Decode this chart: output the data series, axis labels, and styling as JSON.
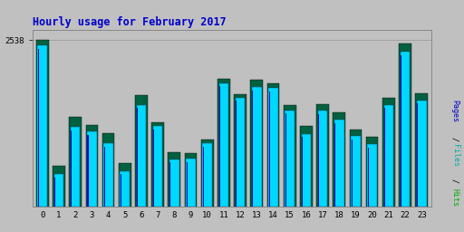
{
  "title": "Hourly usage for February 2017",
  "ytick_label": "2538",
  "ymax": 2538,
  "hours": [
    0,
    1,
    2,
    3,
    4,
    5,
    6,
    7,
    8,
    9,
    10,
    11,
    12,
    13,
    14,
    15,
    16,
    17,
    18,
    19,
    20,
    21,
    22,
    23
  ],
  "background_color": "#c0c0c0",
  "bar_color_green": "#006040",
  "bar_color_cyan": "#00d8ff",
  "bar_color_blue": "#0000cc",
  "bar_edge_color": "#000000",
  "title_color": "#0000cc",
  "ylabel_color": "#00aacc",
  "green_bars": [
    2538,
    620,
    1360,
    1240,
    1120,
    660,
    1700,
    1290,
    830,
    820,
    1020,
    1950,
    1710,
    1930,
    1880,
    1540,
    1230,
    1560,
    1430,
    1180,
    1060,
    1660,
    2490,
    1730
  ],
  "cyan_bars": [
    2460,
    490,
    1210,
    1140,
    960,
    540,
    1550,
    1230,
    720,
    730,
    960,
    1880,
    1660,
    1820,
    1810,
    1470,
    1110,
    1460,
    1320,
    1070,
    950,
    1550,
    2360,
    1620
  ],
  "blue_bars": [
    2400,
    440,
    1160,
    1090,
    910,
    490,
    1500,
    1180,
    670,
    680,
    910,
    1830,
    1610,
    1770,
    1760,
    1420,
    1060,
    1410,
    1270,
    1020,
    900,
    1500,
    2310,
    1570
  ]
}
